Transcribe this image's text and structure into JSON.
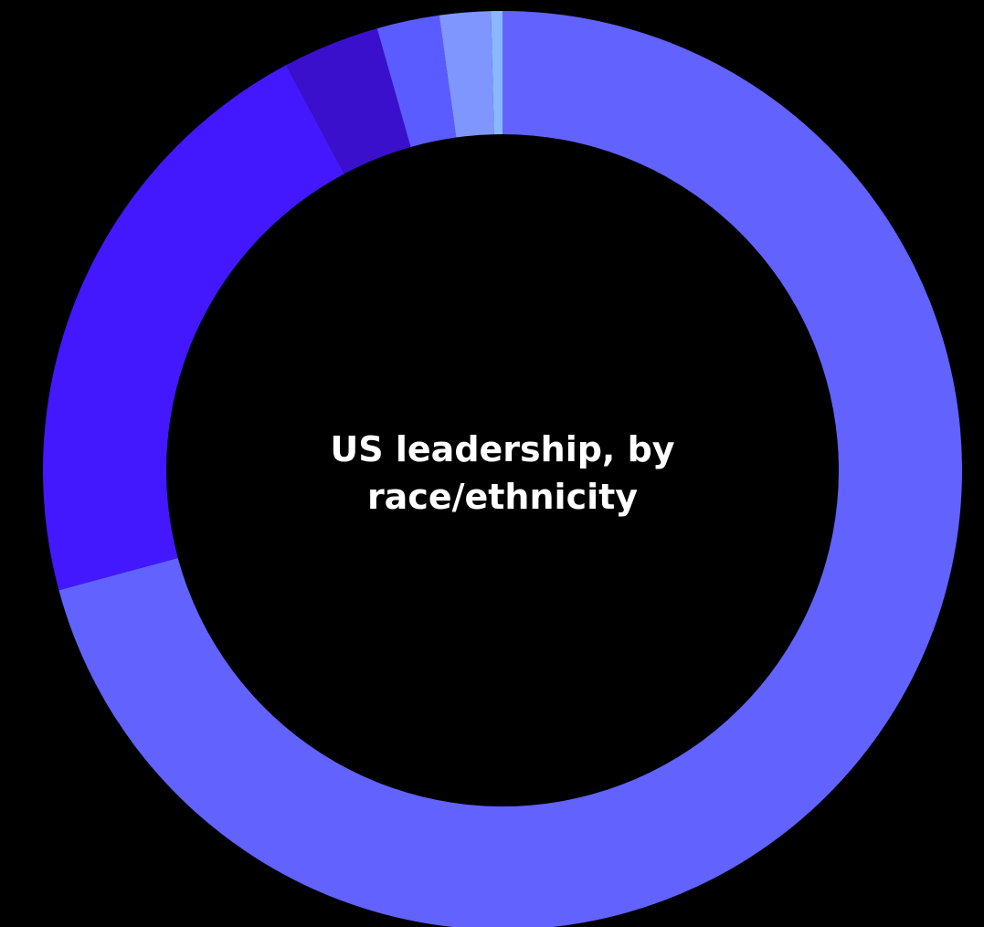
{
  "chart_data": {
    "type": "pie",
    "title": "US leadership, by race/ethnicity",
    "values": [
      70.8,
      21.4,
      3.4,
      2.2,
      1.8,
      0.4
    ],
    "colors": [
      "#6262ff",
      "#4318ff",
      "#3a10cc",
      "#5a5cff",
      "#7f96ff",
      "#8ab8ff"
    ],
    "donut": true
  }
}
